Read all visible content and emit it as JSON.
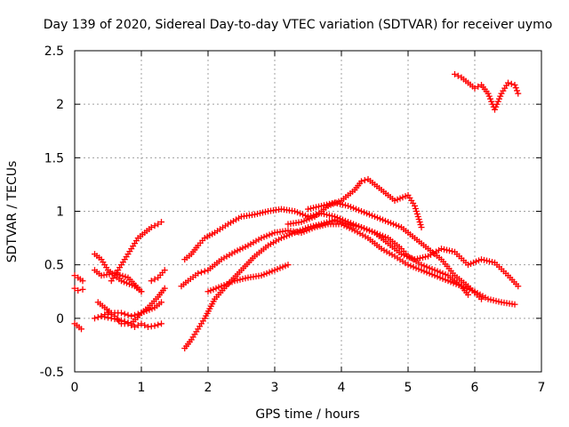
{
  "chart_data": {
    "type": "scatter",
    "title": "Day 139 of 2020, Sidereal Day-to-day VTEC variation (SDTVAR) for receiver uymo",
    "xlabel": "GPS time / hours",
    "ylabel": "SDTVAR / TECUs",
    "xlim": [
      0,
      7
    ],
    "ylim": [
      -0.5,
      2.5
    ],
    "xticks": [
      0,
      1,
      2,
      3,
      4,
      5,
      6,
      7
    ],
    "yticks": [
      -0.5,
      0,
      0.5,
      1,
      1.5,
      2,
      2.5
    ],
    "xtick_labels": [
      "0",
      "1",
      "2",
      "3",
      "4",
      "5",
      "6",
      "7"
    ],
    "ytick_labels": [
      "-0.5",
      "0",
      "0.5",
      "1",
      "1.5",
      "2",
      "2.5"
    ],
    "grid": true,
    "marker": "+",
    "color": "#ff0000",
    "series": [
      {
        "name": "s1",
        "x": [
          0.0,
          0.05,
          0.12
        ],
        "y": [
          0.4,
          0.38,
          0.35
        ]
      },
      {
        "name": "s2",
        "x": [
          0.0,
          0.05,
          0.12
        ],
        "y": [
          0.28,
          0.26,
          0.27
        ]
      },
      {
        "name": "s3",
        "x": [
          0.0,
          0.1
        ],
        "y": [
          -0.05,
          -0.1
        ]
      },
      {
        "name": "s4",
        "x": [
          0.3,
          0.4,
          0.5,
          0.7,
          0.9,
          1.0
        ],
        "y": [
          0.6,
          0.55,
          0.45,
          0.35,
          0.3,
          0.25
        ]
      },
      {
        "name": "s5",
        "x": [
          0.3,
          0.4,
          0.6,
          0.8,
          1.0
        ],
        "y": [
          0.45,
          0.4,
          0.42,
          0.38,
          0.25
        ]
      },
      {
        "name": "s6",
        "x": [
          0.3,
          0.4,
          0.5,
          0.6,
          0.7,
          0.8,
          0.9,
          1.0,
          1.1,
          1.2,
          1.3
        ],
        "y": [
          0.0,
          0.02,
          0.05,
          0.02,
          -0.05,
          -0.05,
          -0.08,
          -0.05,
          -0.08,
          -0.07,
          -0.05
        ]
      },
      {
        "name": "s7",
        "x": [
          0.35,
          0.45,
          0.55,
          0.7,
          0.85,
          1.0,
          1.2,
          1.3
        ],
        "y": [
          0.15,
          0.1,
          0.05,
          0.05,
          0.02,
          0.05,
          0.1,
          0.15
        ]
      },
      {
        "name": "s8",
        "x": [
          0.4,
          0.55,
          0.7,
          0.85,
          1.0,
          1.1,
          1.25,
          1.35
        ],
        "y": [
          0.02,
          0.0,
          -0.02,
          -0.05,
          0.05,
          0.1,
          0.2,
          0.28
        ]
      },
      {
        "name": "s9",
        "x": [
          0.55,
          0.65,
          0.75,
          0.85,
          0.95,
          1.05,
          1.15,
          1.25,
          1.3
        ],
        "y": [
          0.35,
          0.45,
          0.55,
          0.65,
          0.75,
          0.8,
          0.85,
          0.88,
          0.9
        ]
      },
      {
        "name": "s10",
        "x": [
          1.15,
          1.25,
          1.35
        ],
        "y": [
          0.35,
          0.38,
          0.45
        ]
      },
      {
        "name": "s11",
        "x": [
          1.65,
          1.75,
          1.85,
          1.95,
          2.1,
          2.3,
          2.5,
          2.7,
          2.9,
          3.1,
          3.3,
          3.5,
          3.7,
          3.9,
          4.1,
          4.3,
          4.5,
          4.7,
          4.9,
          5.0,
          5.2,
          5.4,
          5.6,
          5.8,
          5.9
        ],
        "y": [
          0.55,
          0.6,
          0.68,
          0.75,
          0.8,
          0.88,
          0.95,
          0.97,
          1.0,
          1.02,
          1.0,
          0.95,
          0.98,
          0.95,
          0.9,
          0.85,
          0.8,
          0.75,
          0.65,
          0.58,
          0.5,
          0.45,
          0.4,
          0.3,
          0.22
        ]
      },
      {
        "name": "s12",
        "x": [
          1.6,
          1.7,
          1.85,
          2.0,
          2.2,
          2.4,
          2.6,
          2.8,
          3.0,
          3.2,
          3.4,
          3.6,
          3.8,
          4.0,
          4.2,
          4.4,
          4.6,
          4.8,
          5.0,
          5.2,
          5.4,
          5.6,
          5.8,
          6.0,
          6.2,
          6.4,
          6.6
        ],
        "y": [
          0.3,
          0.35,
          0.42,
          0.45,
          0.55,
          0.62,
          0.68,
          0.75,
          0.8,
          0.82,
          0.8,
          0.85,
          0.88,
          0.88,
          0.82,
          0.75,
          0.65,
          0.58,
          0.5,
          0.45,
          0.4,
          0.35,
          0.3,
          0.25,
          0.18,
          0.15,
          0.13
        ]
      },
      {
        "name": "s13",
        "x": [
          1.65,
          1.75,
          1.85,
          1.95,
          2.1,
          2.3,
          2.5,
          2.7,
          2.9,
          3.1,
          3.3,
          3.5,
          3.7,
          3.9,
          4.1,
          4.3,
          4.5,
          4.7,
          4.9,
          5.1,
          5.3,
          5.5,
          5.7,
          5.9,
          6.1,
          6.3,
          6.5,
          6.65
        ],
        "y": [
          -0.28,
          -0.2,
          -0.1,
          0.0,
          0.18,
          0.32,
          0.45,
          0.58,
          0.68,
          0.75,
          0.8,
          0.85,
          0.88,
          0.92,
          0.88,
          0.85,
          0.8,
          0.7,
          0.6,
          0.55,
          0.58,
          0.65,
          0.62,
          0.5,
          0.55,
          0.52,
          0.4,
          0.3
        ]
      },
      {
        "name": "s14",
        "x": [
          2.0,
          2.2,
          2.4,
          2.6,
          2.8,
          3.0,
          3.2
        ],
        "y": [
          0.25,
          0.3,
          0.35,
          0.38,
          0.4,
          0.45,
          0.5
        ]
      },
      {
        "name": "s15",
        "x": [
          3.2,
          3.4,
          3.6,
          3.8,
          4.0,
          4.2,
          4.3,
          4.4,
          4.6,
          4.8,
          5.0,
          5.1,
          5.2
        ],
        "y": [
          0.88,
          0.9,
          0.95,
          1.05,
          1.1,
          1.2,
          1.28,
          1.3,
          1.2,
          1.1,
          1.15,
          1.05,
          0.85
        ]
      },
      {
        "name": "s16",
        "x": [
          3.5,
          3.7,
          3.9,
          4.1,
          4.3,
          4.5,
          4.7,
          4.9,
          5.1,
          5.3,
          5.5,
          5.7,
          5.9,
          6.1
        ],
        "y": [
          1.02,
          1.05,
          1.08,
          1.05,
          1.0,
          0.95,
          0.9,
          0.85,
          0.75,
          0.65,
          0.55,
          0.4,
          0.3,
          0.18
        ]
      },
      {
        "name": "s17",
        "x": [
          5.7,
          5.8,
          5.9,
          6.0,
          6.1,
          6.2,
          6.3,
          6.4,
          6.5,
          6.6,
          6.65
        ],
        "y": [
          2.28,
          2.25,
          2.2,
          2.15,
          2.18,
          2.1,
          1.95,
          2.1,
          2.2,
          2.18,
          2.1
        ]
      }
    ]
  }
}
